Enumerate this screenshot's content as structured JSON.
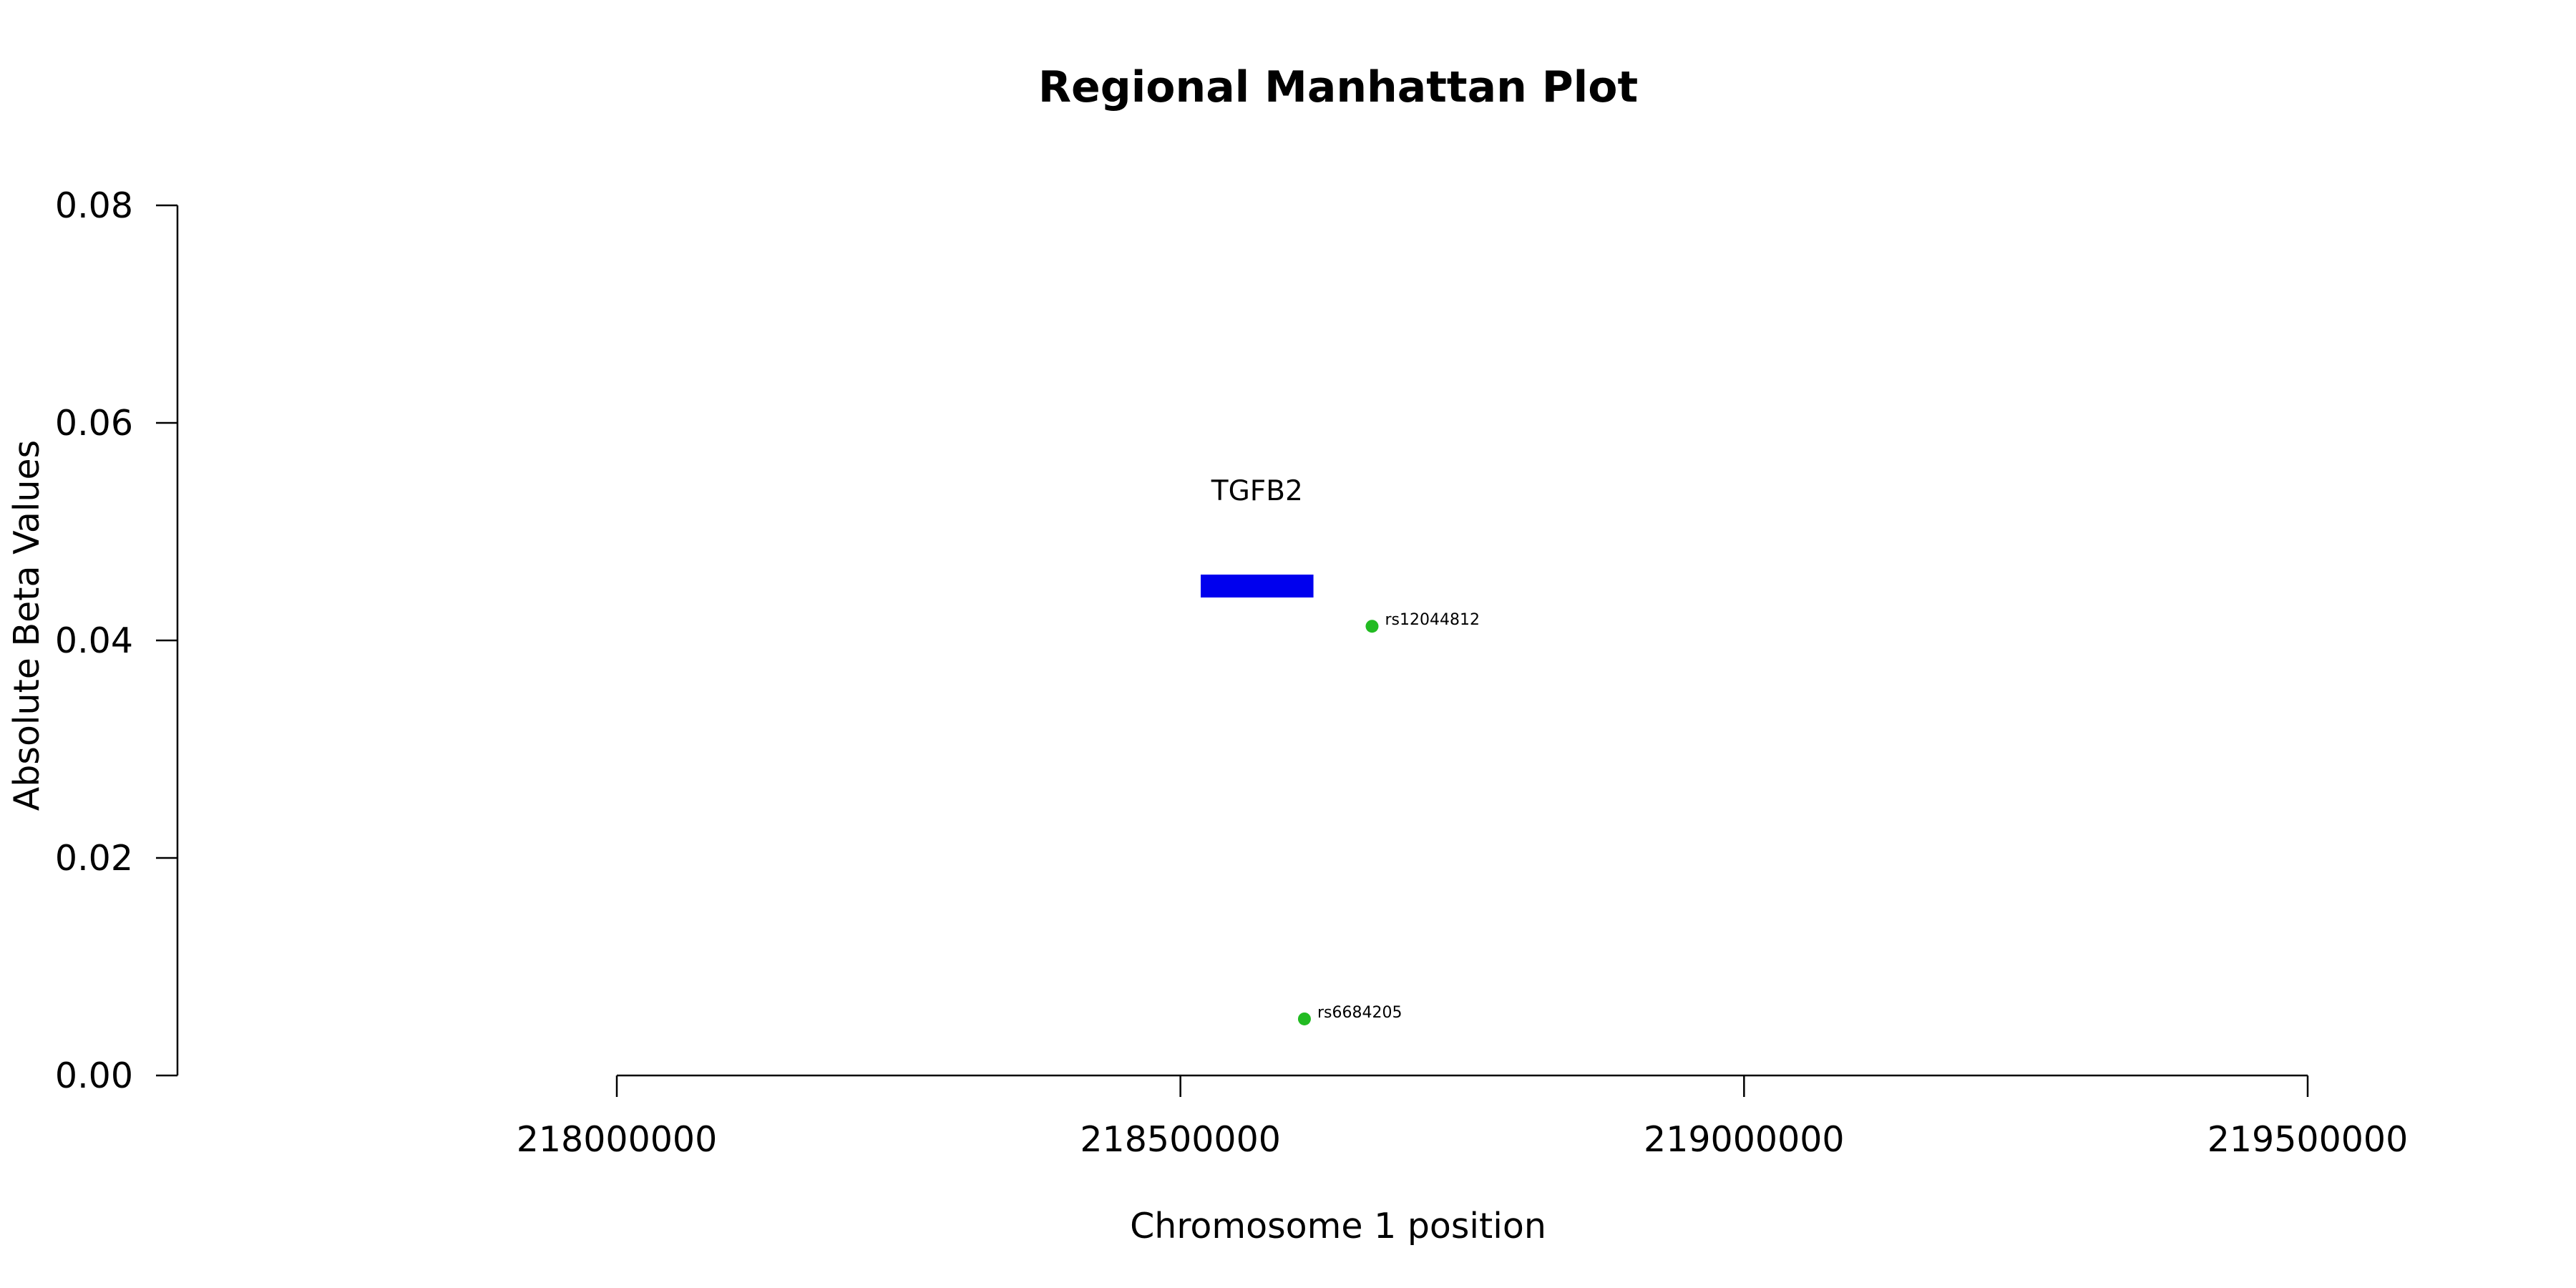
{
  "chart_data": {
    "type": "scatter",
    "title": "Regional Manhattan Plot",
    "xlabel": "Chromosome 1 position",
    "ylabel": "Absolute Beta Values",
    "xlim": [
      217610000,
      219700000
    ],
    "ylim": [
      0,
      0.08
    ],
    "x_axis_range": [
      218000000,
      219500000
    ],
    "x_ticks": [
      218000000,
      218500000,
      219000000,
      219500000
    ],
    "x_tick_labels": [
      "218000000",
      "218500000",
      "219000000",
      "219500000"
    ],
    "y_ticks": [
      0,
      0.02,
      0.04,
      0.06,
      0.08
    ],
    "y_tick_labels": [
      "0.00",
      "0.02",
      "0.04",
      "0.06",
      "0.08"
    ],
    "grid": false,
    "points": [
      {
        "label": "rs12044812",
        "x": 218670000,
        "y": 0.0413,
        "color": "#22bb22"
      },
      {
        "label": "rs6684205",
        "x": 218610000,
        "y": 0.0052,
        "color": "#22bb22"
      }
    ],
    "genes": [
      {
        "name": "TGFB2",
        "start": 218518000,
        "end": 218618000,
        "y": 0.045,
        "color": "#0000ee"
      }
    ]
  }
}
